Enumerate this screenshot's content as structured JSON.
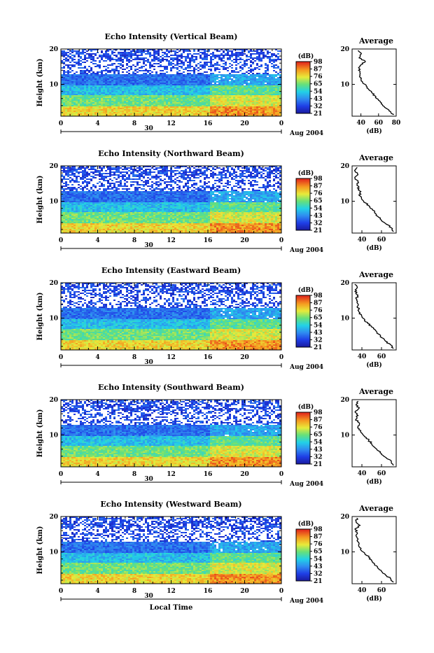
{
  "figure": {
    "panel_titles": [
      "Echo Intensity (Vertical Beam)",
      "Echo Intensity (Northward Beam)",
      "Echo Intensity (Eastward Beam)",
      "Echo Intensity (Southward Beam)",
      "Echo Intensity (Westward Beam)"
    ],
    "y_label": "Height (km)",
    "x_label": "Local Time",
    "date_label": "30",
    "month_label": "Aug 2004",
    "colorbar_label": "(dB)",
    "average_title": "Average",
    "average_xlabel": "(dB)"
  },
  "chart_data": [
    {
      "type": "heatmap",
      "title": "Echo Intensity (Vertical Beam)",
      "ylabel": "Height (km)",
      "x_ticks": [
        "0",
        "4",
        "8",
        "12",
        "16",
        "20",
        "0"
      ],
      "xlim": [
        0,
        24
      ],
      "y_ticks": [
        "10",
        "20"
      ],
      "ylim": [
        1,
        20
      ],
      "colorbar": {
        "label": "(dB)",
        "ticks": [
          "21",
          "32",
          "43",
          "54",
          "65",
          "76",
          "87",
          "98"
        ],
        "range": [
          21,
          98
        ]
      },
      "annotations": [
        "30",
        "Aug 2004"
      ],
      "average_profile": {
        "type": "line",
        "title": "Average",
        "xlabel": "(dB)",
        "x_ticks": [
          "40",
          "60",
          "80"
        ],
        "xlim": [
          30,
          80
        ],
        "y_ticks": [
          "10",
          "20"
        ],
        "ylim": [
          1,
          20
        ],
        "height_km": [
          1.5,
          2.5,
          3.5,
          4.5,
          5.5,
          6.5,
          7.5,
          8.5,
          9.5,
          10.5,
          11.5,
          12.5,
          13.5,
          14.5,
          15.5,
          16.5,
          17.5,
          18.5,
          19.5
        ],
        "db": [
          77,
          72,
          67,
          63,
          60,
          57,
          53,
          49,
          46,
          42,
          40,
          39,
          39,
          38,
          40,
          45,
          38,
          40,
          37
        ]
      }
    },
    {
      "type": "heatmap",
      "title": "Echo Intensity (Northward Beam)",
      "ylabel": "Height (km)",
      "x_ticks": [
        "0",
        "4",
        "8",
        "12",
        "16",
        "20",
        "0"
      ],
      "xlim": [
        0,
        24
      ],
      "y_ticks": [
        "10",
        "20"
      ],
      "ylim": [
        1,
        20
      ],
      "colorbar": {
        "label": "(dB)",
        "ticks": [
          "21",
          "32",
          "43",
          "54",
          "65",
          "76",
          "87",
          "98"
        ],
        "range": [
          21,
          98
        ]
      },
      "annotations": [
        "30",
        "Aug 2004"
      ],
      "average_profile": {
        "type": "line",
        "title": "Average",
        "xlabel": "(dB)",
        "x_ticks": [
          "40",
          "60"
        ],
        "xlim": [
          30,
          75
        ],
        "y_ticks": [
          "10",
          "20"
        ],
        "ylim": [
          1,
          20
        ],
        "height_km": [
          1.5,
          2.5,
          3.5,
          4.5,
          5.5,
          6.5,
          7.5,
          8.5,
          9.5,
          10.5,
          11.5,
          12.5,
          13.5,
          14.5,
          15.5,
          16.5,
          17.5,
          18.5,
          19.5
        ],
        "db": [
          72,
          70,
          65,
          60,
          57,
          54,
          51,
          48,
          44,
          40,
          38,
          38,
          37,
          35,
          36,
          33,
          36,
          33,
          35
        ]
      }
    },
    {
      "type": "heatmap",
      "title": "Echo Intensity (Eastward Beam)",
      "ylabel": "Height (km)",
      "x_ticks": [
        "0",
        "4",
        "8",
        "12",
        "16",
        "20",
        "0"
      ],
      "xlim": [
        0,
        24
      ],
      "y_ticks": [
        "10",
        "20"
      ],
      "ylim": [
        1,
        20
      ],
      "colorbar": {
        "label": "(dB)",
        "ticks": [
          "21",
          "32",
          "43",
          "54",
          "65",
          "76",
          "87",
          "98"
        ],
        "range": [
          21,
          98
        ]
      },
      "annotations": [
        "30",
        "Aug 2004"
      ],
      "average_profile": {
        "type": "line",
        "title": "Average",
        "xlabel": "(dB)",
        "x_ticks": [
          "40",
          "60"
        ],
        "xlim": [
          30,
          75
        ],
        "y_ticks": [
          "10",
          "20"
        ],
        "ylim": [
          1,
          20
        ],
        "height_km": [
          1.5,
          2.5,
          3.5,
          4.5,
          5.5,
          6.5,
          7.5,
          8.5,
          9.5,
          10.5,
          11.5,
          12.5,
          13.5,
          14.5,
          15.5,
          16.5,
          17.5,
          18.5,
          19.5
        ],
        "db": [
          72,
          69,
          64,
          60,
          57,
          54,
          50,
          46,
          43,
          40,
          38,
          37,
          36,
          35,
          34,
          36,
          33,
          35,
          33
        ]
      }
    },
    {
      "type": "heatmap",
      "title": "Echo Intensity (Southward Beam)",
      "ylabel": "Height (km)",
      "x_ticks": [
        "0",
        "4",
        "8",
        "12",
        "16",
        "20",
        "0"
      ],
      "xlim": [
        0,
        24
      ],
      "y_ticks": [
        "10",
        "20"
      ],
      "ylim": [
        1,
        20
      ],
      "colorbar": {
        "label": "(dB)",
        "ticks": [
          "21",
          "32",
          "43",
          "54",
          "65",
          "76",
          "87",
          "98"
        ],
        "range": [
          21,
          98
        ]
      },
      "annotations": [
        "30",
        "Aug 2004"
      ],
      "average_profile": {
        "type": "line",
        "title": "Average",
        "xlabel": "(dB)",
        "x_ticks": [
          "40",
          "60"
        ],
        "xlim": [
          30,
          75
        ],
        "y_ticks": [
          "10",
          "20"
        ],
        "ylim": [
          1,
          20
        ],
        "height_km": [
          1.5,
          2.5,
          3.5,
          4.5,
          5.5,
          6.5,
          7.5,
          8.5,
          9.5,
          10.5,
          11.5,
          12.5,
          13.5,
          14.5,
          15.5,
          16.5,
          17.5,
          18.5,
          19.5
        ],
        "db": [
          72,
          70,
          65,
          60,
          57,
          53,
          50,
          47,
          43,
          40,
          37,
          36,
          37,
          34,
          36,
          33,
          37,
          34,
          36
        ]
      }
    },
    {
      "type": "heatmap",
      "title": "Echo Intensity (Westward Beam)",
      "ylabel": "Height (km)",
      "xlabel": "Local Time",
      "x_ticks": [
        "0",
        "4",
        "8",
        "12",
        "16",
        "20",
        "0"
      ],
      "xlim": [
        0,
        24
      ],
      "y_ticks": [
        "10",
        "20"
      ],
      "ylim": [
        1,
        20
      ],
      "colorbar": {
        "label": "(dB)",
        "ticks": [
          "21",
          "32",
          "43",
          "54",
          "65",
          "76",
          "87",
          "98"
        ],
        "range": [
          21,
          98
        ]
      },
      "annotations": [
        "30",
        "Aug 2004"
      ],
      "average_profile": {
        "type": "line",
        "title": "Average",
        "xlabel": "(dB)",
        "x_ticks": [
          "40",
          "60"
        ],
        "xlim": [
          30,
          75
        ],
        "y_ticks": [
          "10",
          "20"
        ],
        "ylim": [
          1,
          20
        ],
        "height_km": [
          1.5,
          2.5,
          3.5,
          4.5,
          5.5,
          6.5,
          7.5,
          8.5,
          9.5,
          10.5,
          11.5,
          12.5,
          13.5,
          14.5,
          15.5,
          16.5,
          17.5,
          18.5,
          19.5
        ],
        "db": [
          72,
          69,
          64,
          60,
          56,
          53,
          50,
          47,
          43,
          39,
          37,
          37,
          36,
          34,
          35,
          33,
          38,
          34,
          35
        ]
      }
    }
  ]
}
